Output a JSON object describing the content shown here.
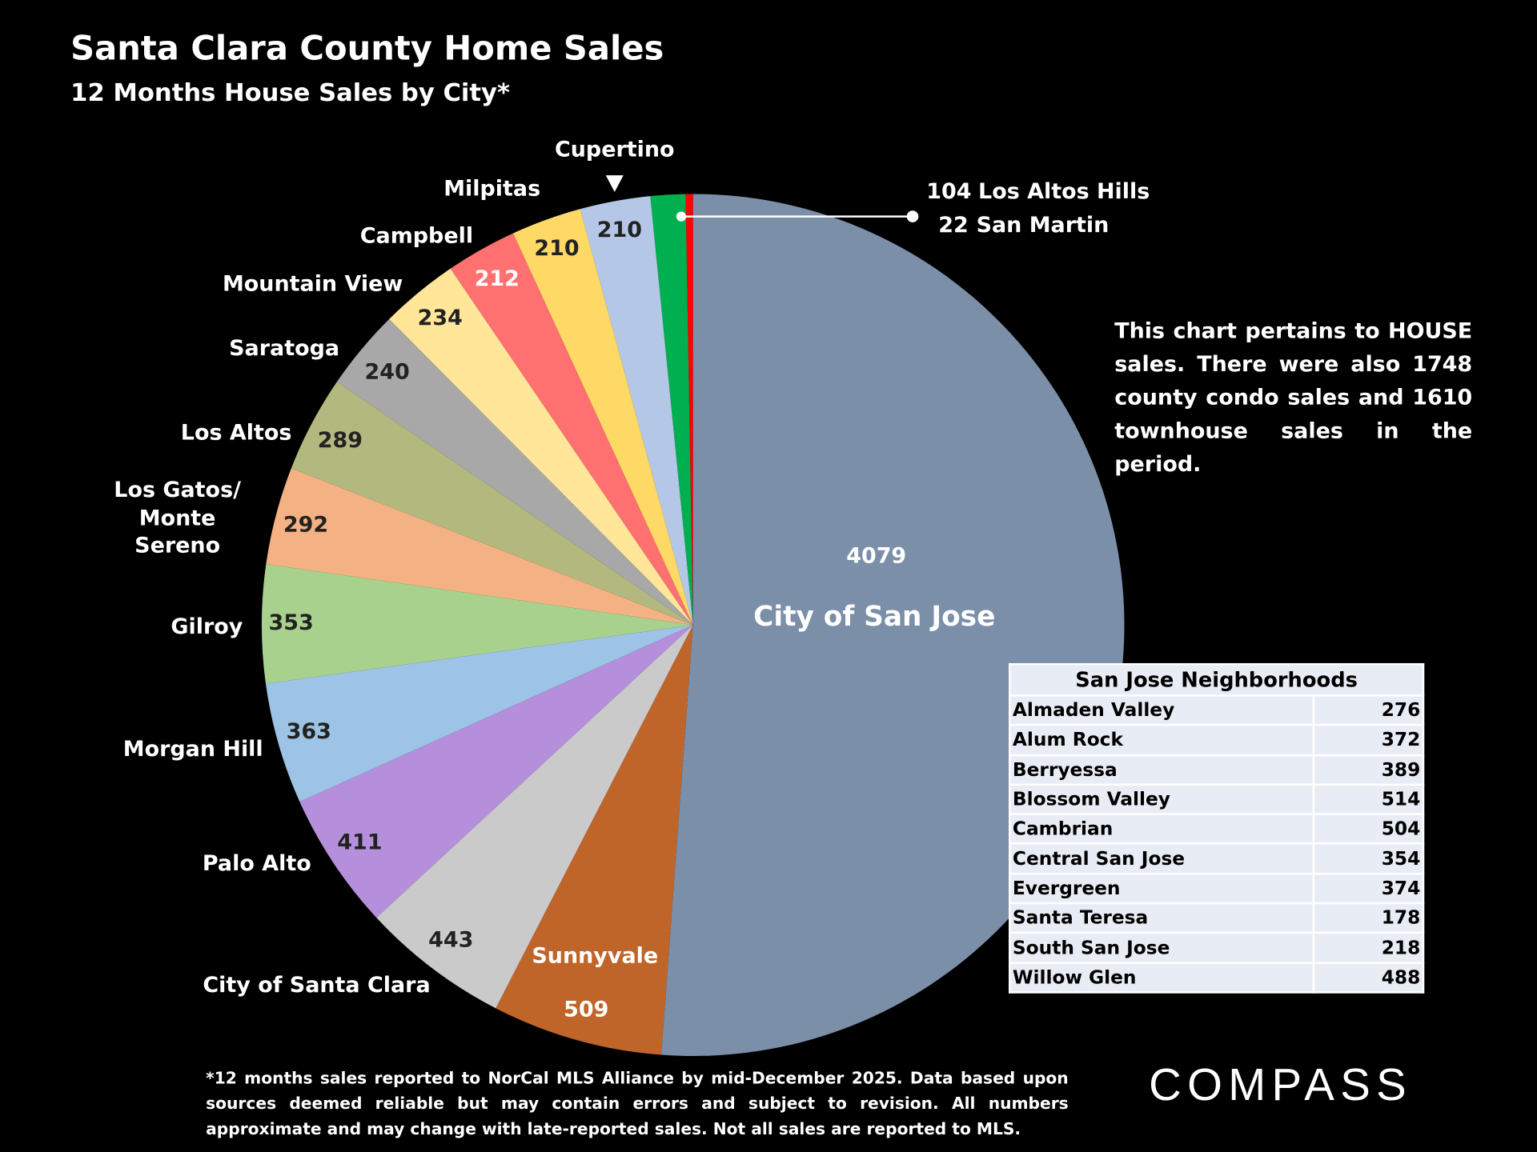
{
  "chart_data": {
    "type": "pie",
    "title": "Santa Clara County Home Sales",
    "subtitle": "12 Months House Sales by City*",
    "categories": [
      "City of San Jose",
      "Sunnyvale",
      "City of Santa Clara",
      "Palo Alto",
      "Morgan Hill",
      "Gilroy",
      "Los Gatos/ Monte Sereno",
      "Los Altos",
      "Saratoga",
      "Mountain View",
      "Campbell",
      "Milpitas",
      "Cupertino",
      "Los Altos Hills",
      "San Martin"
    ],
    "values": [
      4079,
      509,
      443,
      411,
      363,
      353,
      292,
      289,
      240,
      234,
      212,
      210,
      210,
      104,
      22
    ],
    "colors": [
      "#7b8fa8",
      "#c0652a",
      "#cacaca",
      "#b68fdc",
      "#9dc3e6",
      "#a9d18e",
      "#f4b183",
      "#b2b87e",
      "#a8a8a8",
      "#ffe699",
      "#ff7070",
      "#ffd966",
      "#b4c7e7",
      "#00b050",
      "#ff0000"
    ]
  },
  "note": "This chart pertains to HOUSE sales. There were also 1748 county condo sales and 1610 townhouse sales in the period.",
  "table": {
    "title": "San Jose Neighborhoods",
    "rows": [
      [
        "Almaden Valley",
        "276"
      ],
      [
        "Alum Rock",
        "372"
      ],
      [
        "Berryessa",
        "389"
      ],
      [
        "Blossom Valley",
        "514"
      ],
      [
        "Cambrian",
        "504"
      ],
      [
        "Central San Jose",
        "354"
      ],
      [
        "Evergreen",
        "374"
      ],
      [
        "Santa Teresa",
        "178"
      ],
      [
        "South San Jose",
        "218"
      ],
      [
        "Willow Glen",
        "488"
      ]
    ]
  },
  "footnote": "*12 months sales reported to NorCal MLS Alliance by mid-December 2025. Data based upon sources deemed reliable but may contain errors and subject to revision. All numbers approximate and may change with late-reported sales. Not all sales are reported to MLS.",
  "logo": "COMPASS"
}
